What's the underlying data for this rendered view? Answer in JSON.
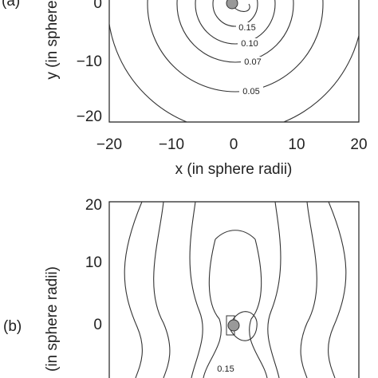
{
  "panels": [
    {
      "label": "(a)",
      "x_label": "x (in sphere radii)",
      "y_label": "y (in sphere",
      "x_ticks": [
        "−20",
        "−10",
        "0",
        "10",
        "20"
      ],
      "y_ticks": [
        "0",
        "−10",
        "−20"
      ],
      "contour_labels": [
        "0.15",
        "0.10",
        "0.07",
        "0.05"
      ]
    },
    {
      "label": "(b)",
      "y_label": "(in sphere radii)",
      "y_ticks": [
        "20",
        "10",
        "0"
      ],
      "contour_labels": [
        "0.15"
      ]
    }
  ]
}
